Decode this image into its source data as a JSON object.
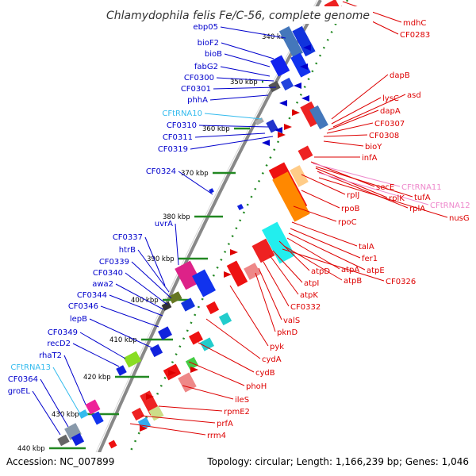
{
  "title": "Chlamydophila felis Fe/C-56, complete genome",
  "footer": {
    "accession": "Accession: NC_007899",
    "stats": "Topology: circular; Length: 1,166,239 bp; Genes: 1,046"
  },
  "colors": {
    "forward": "#0000cc",
    "reverse": "#dd0000",
    "rna_left": "#33bbee",
    "rna_right": "#ee88cc",
    "axis": "#888888",
    "tick": "#228822"
  },
  "kbp_ticks": [
    "340 kbp",
    "350 kbp",
    "360 kbp",
    "370 kbp",
    "380 kbp",
    "390 kbp",
    "400 kbp",
    "410 kbp",
    "420 kbp",
    "430 kbp",
    "440 kbp"
  ],
  "left_labels": [
    "ebp05",
    "bioF2",
    "bioB",
    "fabG2",
    "CF0300",
    "CF0301",
    "phhA",
    "CFtRNA10",
    "CF0310",
    "CF0311",
    "CF0319",
    "CF0324",
    "uvrA",
    "CF0337",
    "htrB",
    "CF0339",
    "CF0340",
    "awa2",
    "CF0344",
    "CF0346",
    "lepB",
    "CF0349",
    "recD2",
    "rhaT2",
    "CFtRNA13",
    "CF0364",
    "groEL"
  ],
  "right_labels": [
    "mdhC",
    "CF0283",
    "dapB",
    "lysC",
    "asd",
    "dapA",
    "CF0307",
    "CF0308",
    "bioY",
    "infA",
    "secE",
    "CFtRNA11",
    "tufA",
    "rplK",
    "rplA",
    "CFtRNA12",
    "rpIJ",
    "nusG",
    "rpoB",
    "rpoC",
    "talA",
    "fer1",
    "atpE",
    "atpA",
    "atpD",
    "atpB",
    "atpI",
    "CF0326",
    "atpK",
    "CF0332",
    "valS",
    "pknD",
    "pyk",
    "cydA",
    "cydB",
    "phoH",
    "ileS",
    "rpmE2",
    "prfA",
    "rrm4"
  ]
}
